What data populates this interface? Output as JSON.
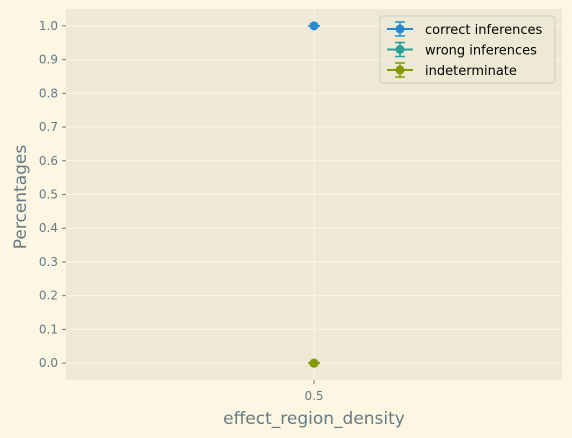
{
  "chart_data": {
    "type": "scatter",
    "title": "",
    "xlabel": "effect_region_density",
    "ylabel": "Percentages",
    "x_categories": [
      "0.5"
    ],
    "ylim": [
      -0.05,
      1.05
    ],
    "yticks": [
      "0.0",
      "0.1",
      "0.2",
      "0.3",
      "0.4",
      "0.5",
      "0.6",
      "0.7",
      "0.8",
      "0.9",
      "1.0"
    ],
    "grid": true,
    "legend_position": "top-right",
    "series": [
      {
        "name": "correct inferences",
        "color": "#268bd2",
        "x": [
          "0.5"
        ],
        "y": [
          1.0
        ],
        "yerr": [
          0.0
        ]
      },
      {
        "name": "wrong inferences",
        "color": "#2aa198",
        "x": [
          "0.5"
        ],
        "y": [
          0.0
        ],
        "yerr": [
          0.0
        ]
      },
      {
        "name": "indeterminate",
        "color": "#859900",
        "x": [
          "0.5"
        ],
        "y": [
          0.0
        ],
        "yerr": [
          0.0
        ]
      }
    ]
  }
}
